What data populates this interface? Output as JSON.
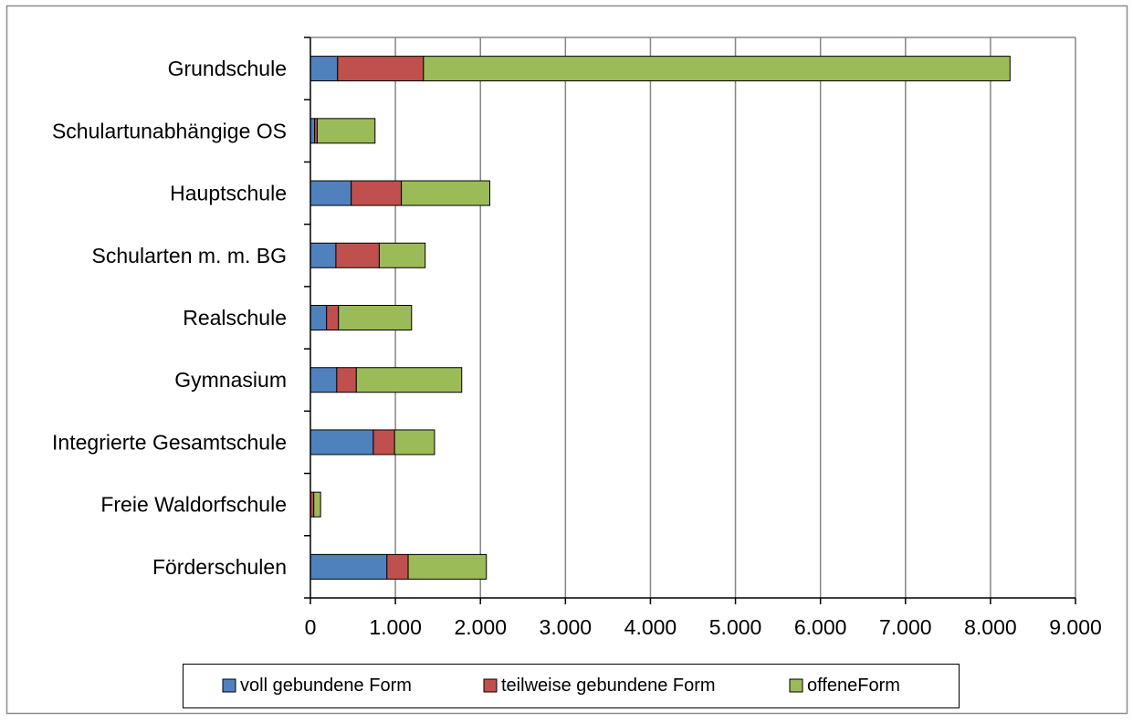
{
  "colors": {
    "voll": "#4F81BD",
    "teilweise": "#C0504D",
    "offen": "#9BBB59",
    "grid": "#868686",
    "axis": "#000000",
    "frame": "#8c8c8c"
  },
  "chart_data": {
    "type": "bar",
    "orientation": "horizontal",
    "stacked": true,
    "categories": [
      "Grundschule",
      "Schulartunabhängige OS",
      "Hauptschule",
      "Schularten m. m. BG",
      "Realschule",
      "Gymnasium",
      "Integrierte Gesamtschule",
      "Freie Waldorfschule",
      "Förderschulen"
    ],
    "series": [
      {
        "name": "voll gebundene Form",
        "values": [
          320,
          50,
          480,
          300,
          190,
          310,
          740,
          0,
          900
        ]
      },
      {
        "name": "teilweise gebundene Form",
        "values": [
          1010,
          30,
          590,
          510,
          140,
          230,
          250,
          40,
          250
        ]
      },
      {
        "name": "offeneForm",
        "values": [
          6900,
          680,
          1040,
          540,
          860,
          1240,
          470,
          80,
          920
        ]
      }
    ],
    "xlim": [
      0,
      9000
    ],
    "x_ticks": [
      0,
      1000,
      2000,
      3000,
      4000,
      5000,
      6000,
      7000,
      8000,
      9000
    ],
    "x_tick_labels": [
      "0",
      "1.000",
      "2.000",
      "3.000",
      "4.000",
      "5.000",
      "6.000",
      "7.000",
      "8.000",
      "9.000"
    ],
    "grid": "vertical-major",
    "legend_position": "bottom",
    "title": "",
    "xlabel": "",
    "ylabel": ""
  }
}
